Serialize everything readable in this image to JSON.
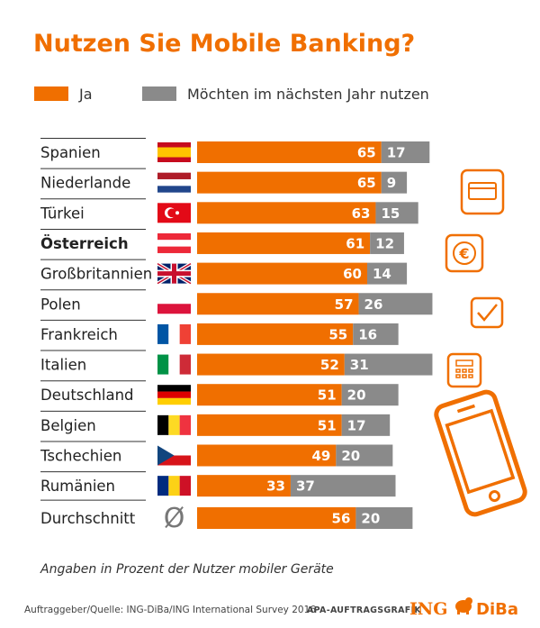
{
  "colors": {
    "accent": "#f06f00",
    "grey": "#8a8a8a",
    "bg": "#ffffff"
  },
  "chart_data": {
    "type": "bar",
    "orientation": "horizontal",
    "stacked": true,
    "title": "Nutzen Sie Mobile Banking?",
    "legend": [
      "Ja",
      "Möchten im nächsten Jahr nutzen"
    ],
    "legend_placement": "top-left",
    "categories": [
      "Spanien",
      "Niederlande",
      "Türkei",
      "Österreich",
      "Großbritannien",
      "Polen",
      "Frankreich",
      "Italien",
      "Deutschland",
      "Belgien",
      "Tschechien",
      "Rumänien",
      "Durchschnitt"
    ],
    "bold_categories": [
      "Österreich"
    ],
    "flags": [
      "spain-flag-icon",
      "netherlands-flag-icon",
      "turkey-flag-icon",
      "austria-flag-icon",
      "uk-flag-icon",
      "poland-flag-icon",
      "france-flag-icon",
      "italy-flag-icon",
      "germany-flag-icon",
      "belgium-flag-icon",
      "czech-flag-icon",
      "romania-flag-icon",
      "average-symbol-icon"
    ],
    "average_symbol": "Ø",
    "series": [
      {
        "name": "Ja",
        "color": "#f06f00",
        "values": [
          65,
          65,
          63,
          61,
          60,
          57,
          55,
          52,
          51,
          51,
          49,
          33,
          56
        ]
      },
      {
        "name": "Möchten im nächsten Jahr nutzen",
        "color": "#8a8a8a",
        "values": [
          17,
          9,
          15,
          12,
          14,
          26,
          16,
          31,
          20,
          17,
          20,
          37,
          20
        ]
      }
    ],
    "grid": false
  },
  "decor_icons": [
    "credit-card-icon",
    "euro-icon",
    "checkmark-icon",
    "calculator-icon",
    "smartphone-icon"
  ],
  "footer": {
    "note": "Angaben in Prozent der Nutzer mobiler Geräte",
    "source": "Auftraggeber/Quelle: ING-DiBa/ING International Survey 2016",
    "credit": "APA-AUFTRAGSGRAFIK",
    "brand_left": "ING",
    "brand_right": "DiBa"
  }
}
